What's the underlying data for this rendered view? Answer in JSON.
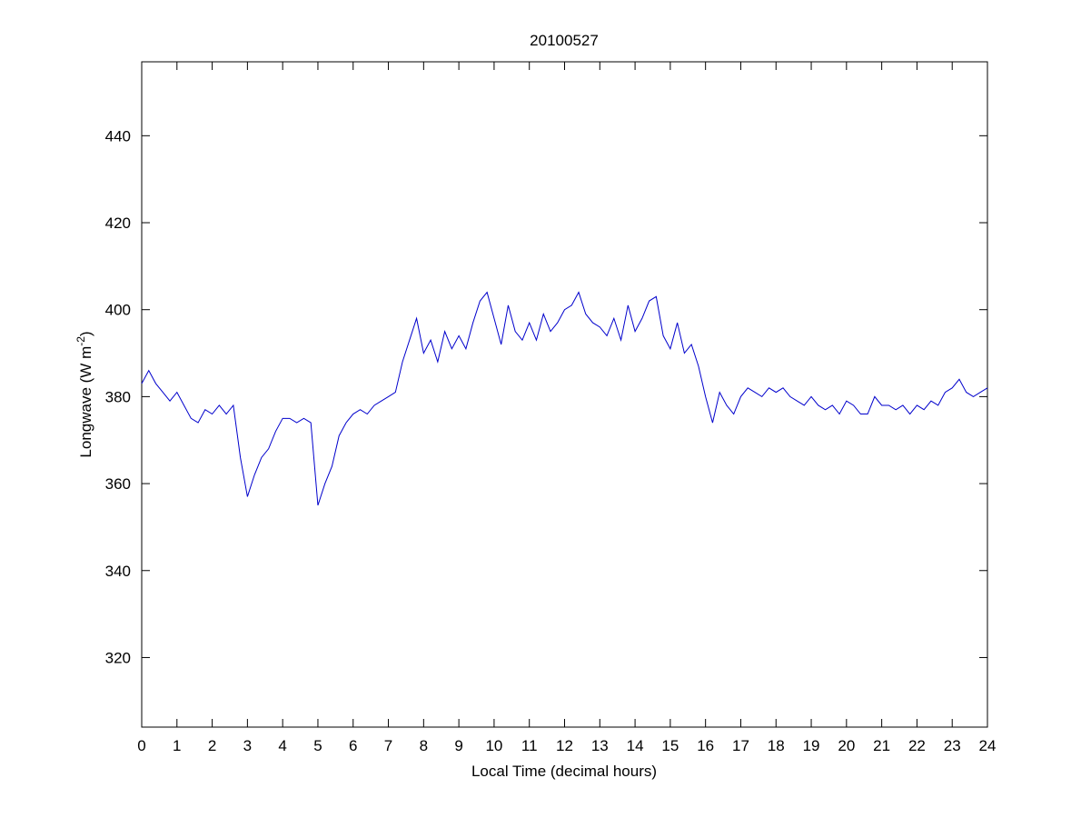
{
  "chart_data": {
    "type": "line",
    "title": "20100527",
    "x_label": "Local Time (decimal hours)",
    "y_label": {
      "text": "Longwave (W m",
      "superscript": "-2",
      "suffix": ")"
    },
    "x": [
      0,
      0.2,
      0.4,
      0.6,
      0.8,
      1,
      1.2,
      1.4,
      1.6,
      1.8,
      2,
      2.2,
      2.4,
      2.6,
      2.8,
      3,
      3.2,
      3.4,
      3.6,
      3.8,
      4,
      4.2,
      4.4,
      4.6,
      4.8,
      5,
      5.2,
      5.4,
      5.6,
      5.8,
      6,
      6.2,
      6.4,
      6.6,
      6.8,
      7,
      7.2,
      7.4,
      7.6,
      7.8,
      8,
      8.2,
      8.4,
      8.6,
      8.8,
      9,
      9.2,
      9.4,
      9.6,
      9.8,
      10,
      10.2,
      10.4,
      10.6,
      10.8,
      11,
      11.2,
      11.4,
      11.6,
      11.8,
      12,
      12.2,
      12.4,
      12.6,
      12.8,
      13,
      13.2,
      13.4,
      13.6,
      13.8,
      14,
      14.2,
      14.4,
      14.6,
      14.8,
      15,
      15.2,
      15.4,
      15.6,
      15.8,
      16,
      16.2,
      16.4,
      16.6,
      16.8,
      17,
      17.2,
      17.4,
      17.6,
      17.8,
      18,
      18.2,
      18.4,
      18.6,
      18.8,
      19,
      19.2,
      19.4,
      19.6,
      19.8,
      20,
      20.2,
      20.4,
      20.6,
      20.8,
      21,
      21.2,
      21.4,
      21.6,
      21.8,
      22,
      22.2,
      22.4,
      22.6,
      22.8,
      23,
      23.2,
      23.4,
      23.6,
      23.8,
      24
    ],
    "series": [
      {
        "color": "#0000cc",
        "values": [
          383,
          386,
          383,
          381,
          379,
          381,
          378,
          375,
          374,
          377,
          376,
          378,
          376,
          378,
          366,
          357,
          362,
          366,
          368,
          372,
          375,
          375,
          374,
          375,
          374,
          355,
          360,
          364,
          371,
          374,
          376,
          377,
          376,
          378,
          379,
          380,
          381,
          388,
          393,
          398,
          390,
          393,
          388,
          395,
          391,
          394,
          391,
          397,
          402,
          404,
          398,
          392,
          401,
          395,
          393,
          397,
          393,
          399,
          395,
          397,
          400,
          401,
          404,
          399,
          397,
          396,
          394,
          398,
          393,
          401,
          395,
          398,
          402,
          403,
          394,
          391,
          397,
          390,
          392,
          387,
          380,
          374,
          381,
          378,
          376,
          380,
          382,
          381,
          380,
          382,
          381,
          382,
          380,
          379,
          378,
          380,
          378,
          377,
          378,
          376,
          379,
          378,
          376,
          376,
          380,
          378,
          378,
          377,
          378,
          376,
          378,
          377,
          379,
          378,
          381,
          382,
          384,
          381,
          380,
          381,
          382
        ]
      }
    ],
    "xlim": [
      0,
      24
    ],
    "ylim": [
      304,
      457
    ],
    "xticks": [
      0,
      1,
      2,
      3,
      4,
      5,
      6,
      7,
      8,
      9,
      10,
      11,
      12,
      13,
      14,
      15,
      16,
      17,
      18,
      19,
      20,
      21,
      22,
      23,
      24
    ],
    "yticks": [
      320,
      340,
      360,
      380,
      400,
      420,
      440
    ],
    "grid": false
  }
}
